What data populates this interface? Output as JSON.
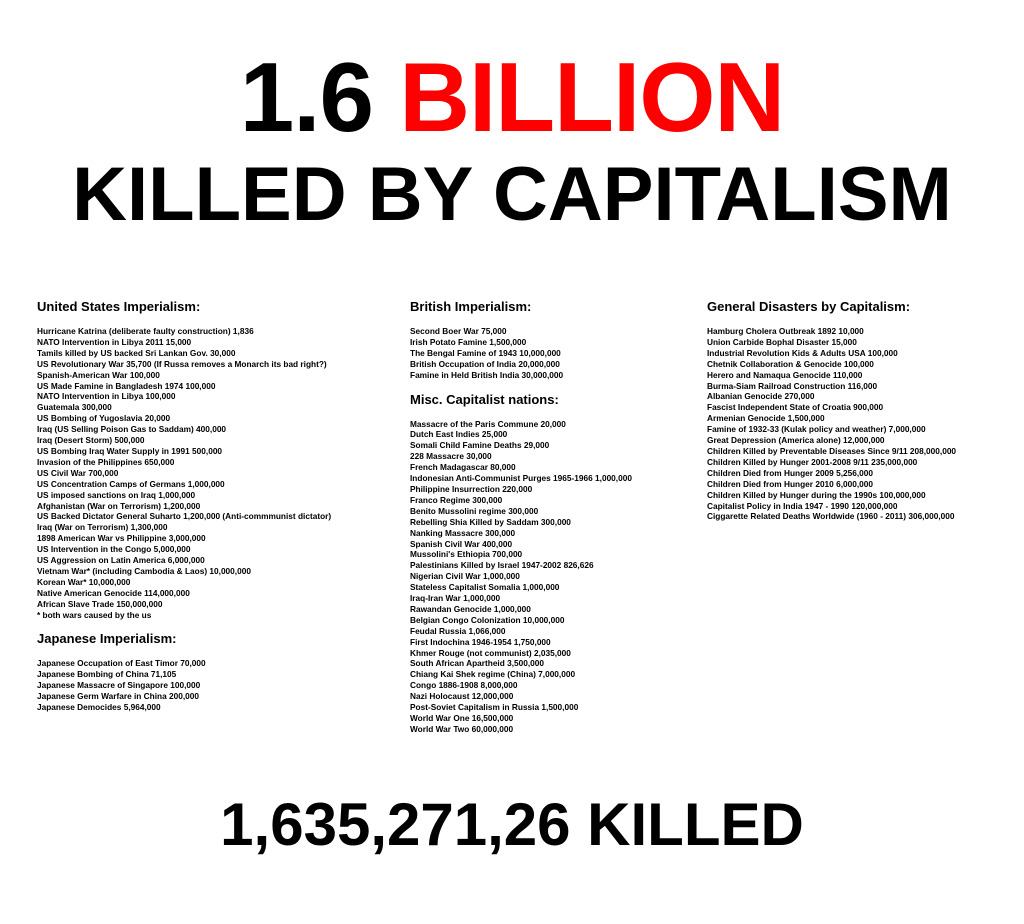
{
  "headline": {
    "number": "1.6",
    "unit": "BILLION",
    "subtitle": "KILLED BY CAPITALISM",
    "accent_color": "#ff0000"
  },
  "total": "1,635,271,26 KILLED",
  "sections": {
    "us": {
      "title": "United States Imperialism:",
      "items": [
        "Hurricane Katrina (deliberate faulty construction) 1,836",
        "NATO Intervention in Libya 2011 15,000",
        "Tamils killed by US backed Sri Lankan Gov. 30,000",
        "US Revolutionary War 35,700 (If Russa removes a Monarch its bad right?)",
        "Spanish-American War 100,000",
        "US Made Famine in Bangladesh 1974 100,000",
        "NATO Intervention in Libya 100,000",
        "Guatemala 300,000",
        "US Bombing of Yugoslavia 20,000",
        "Iraq (US Selling Poison Gas to Saddam) 400,000",
        "Iraq (Desert Storm) 500,000",
        "US Bombing Iraq Water Supply in 1991 500,000",
        "Invasion of the Philippines 650,000",
        "US Civil War 700,000",
        "US Concentration Camps of Germans 1,000,000",
        "US imposed sanctions on Iraq 1,000,000",
        "Afghanistan (War on Terrorism) 1,200,000",
        "US Backed Dictator General Suharto 1,200,000 (Anti-commmunist dictator)",
        "Iraq (War on Terrorism) 1,300,000",
        "1898 American War vs Philippine 3,000,000",
        "US Intervention in the Congo 5,000,000",
        "US Aggression on Latin America 6,000,000",
        "Vietnam War* (including Cambodia & Laos) 10,000,000",
        "Korean War* 10,000,000",
        "Native American Genocide 114,000,000",
        "African Slave Trade 150,000,000",
        "* both wars caused by the us"
      ]
    },
    "japan": {
      "title": "Japanese Imperialism:",
      "items": [
        "Japanese Occupation of East Timor 70,000",
        "Japanese Bombing of China 71,105",
        "Japanese Massacre of Singapore 100,000",
        "Japanese Germ Warfare in China 200,000",
        "Japanese Democides 5,964,000"
      ]
    },
    "british": {
      "title": "British Imperialism:",
      "items": [
        "Second Boer War 75,000",
        "Irish Potato Famine 1,500,000",
        "The Bengal Famine of 1943 10,000,000",
        "British Occupation of India 20,000,000",
        "Famine in Held British India 30,000,000"
      ]
    },
    "misc": {
      "title": "Misc. Capitalist nations:",
      "items": [
        "Massacre of the Paris Commune 20,000",
        "Dutch East Indies 25,000",
        "Somali Child Famine Deaths 29,000",
        "228 Massacre 30,000",
        "French Madagascar 80,000",
        "Indonesian Anti-Communist Purges 1965-1966 1,000,000",
        "Philippine Insurrection 220,000",
        "Franco Regime 300,000",
        "Benito Mussolini regime 300,000",
        "Rebelling Shia Killed by Saddam 300,000",
        "Nanking Massacre 300,000",
        "Spanish Civil War 400,000",
        "Mussolini's Ethiopia 700,000",
        "Palestinians Killed by Israel 1947-2002 826,626",
        "Nigerian Civil War 1,000,000",
        "Stateless Capitalist Somalia 1,000,000",
        "Iraq-Iran War 1,000,000",
        "Rawandan Genocide 1,000,000",
        "Belgian Congo Colonization 10,000,000",
        "Feudal Russia 1,066,000",
        "First Indochina 1946-1954 1,750,000",
        "Khmer Rouge (not communist) 2,035,000",
        "South African Apartheid 3,500,000",
        "Chiang Kai Shek regime (China) 7,000,000",
        "Congo 1886-1908 8,000,000",
        "Nazi Holocaust 12,000,000",
        "Post-Soviet Capitalism in Russia 1,500,000",
        "World War One 16,500,000",
        "World War Two 60,000,000"
      ]
    },
    "general": {
      "title": "General Disasters by Capitalism:",
      "items": [
        "Hamburg Cholera Outbreak 1892 10,000",
        "Union Carbide Bophal Disaster 15,000",
        "Industrial Revolution Kids & Adults USA 100,000",
        "Chetnik Collaboration & Genocide 100,000",
        "Herero and Namaqua Genocide 110,000",
        "Burma-Siam Railroad Construction 116,000",
        "Albanian Genocide 270,000",
        "Fascist Independent State of Croatia 900,000",
        "Armenian Genocide 1,500,000",
        "Famine of 1932-33 (Kulak policy and weather) 7,000,000",
        "Great Depression (America alone) 12,000,000",
        "Children Killed by Preventable Diseases Since 9/11 208,000,000",
        "Children Killed by Hunger 2001-2008 9/11 235,000,000",
        "Children Died from Hunger 2009 5,256,000",
        "Children Died from Hunger 2010 6,000,000",
        "Children Killed by Hunger during the 1990s 100,000,000",
        "Capitalist Policy in India 1947 - 1990 120,000,000",
        "Ciggarette Related Deaths Worldwide (1960 - 2011) 306,000,000"
      ]
    }
  }
}
